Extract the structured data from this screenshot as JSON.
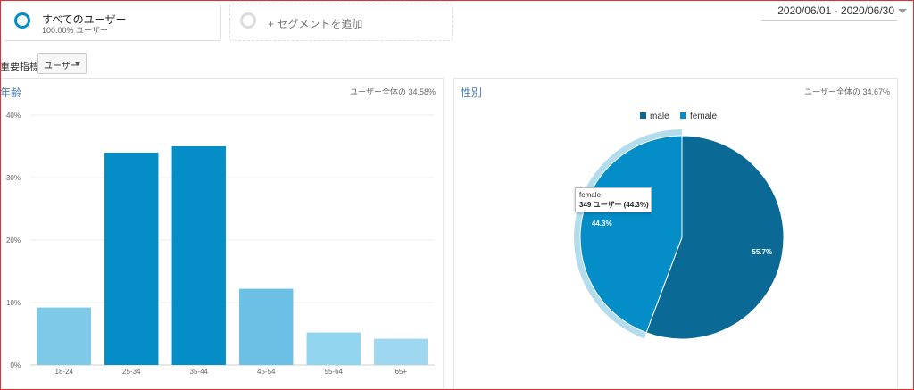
{
  "segments": {
    "all_users": {
      "name": "すべてのユーザー",
      "subtitle": "100.00% ユーザー"
    },
    "add_segment": {
      "label": "+ セグメントを追加"
    }
  },
  "date_range": "2020/06/01 - 2020/06/30",
  "key_metric": {
    "label": "重要指標:",
    "value": "ユーザー"
  },
  "age_panel": {
    "title": "年齢",
    "share": "ユーザー全体の 34.58%"
  },
  "gender_panel": {
    "title": "性別",
    "share": "ユーザー全体の 34.67%"
  },
  "tooltip": {
    "series": "female",
    "value": "349 ユーザー (44.3%)"
  },
  "chart_data": [
    {
      "type": "bar",
      "title": "年齢",
      "categories": [
        "18-24",
        "25-34",
        "35-44",
        "45-54",
        "55-64",
        "65+"
      ],
      "values": [
        9.2,
        34.0,
        35.0,
        12.2,
        5.2,
        4.2
      ],
      "unit": "%",
      "ylim": [
        0,
        40
      ],
      "yticks": [
        "0%",
        "10%",
        "20%",
        "30%",
        "40%"
      ],
      "grid": true,
      "colors": [
        "#7ec8e8",
        "#058dc7",
        "#058dc7",
        "#6cc0e5",
        "#90d4ee",
        "#9ed8f0"
      ]
    },
    {
      "type": "pie",
      "title": "性別",
      "slices": [
        {
          "label": "male",
          "value": 55.7,
          "display": "55.7%",
          "color": "#0a6a95"
        },
        {
          "label": "female",
          "value": 44.3,
          "display": "44.3%",
          "color": "#058dc7"
        }
      ],
      "legend": "top",
      "highlighted": "female"
    }
  ]
}
